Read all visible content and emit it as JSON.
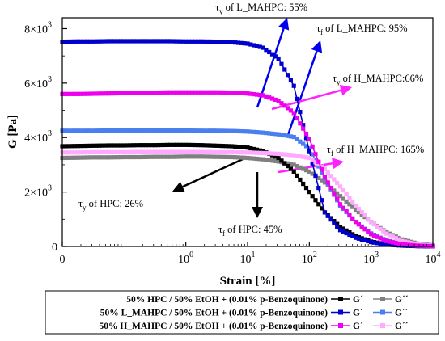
{
  "chart_data": {
    "type": "scatter",
    "xlabel": "Strain [%]",
    "ylabel": "G [Pa]",
    "x_scale": "log",
    "xlim": [
      0.01,
      10000
    ],
    "ylim": [
      0,
      8400
    ],
    "x_ticks": [
      {
        "value": 0.01,
        "label": "0"
      },
      {
        "value": 1,
        "label": "10"
      },
      {
        "value": 10,
        "label": "10"
      },
      {
        "value": 100,
        "label": "10"
      },
      {
        "value": 1000,
        "label": "10"
      },
      {
        "value": 10000,
        "label": "10"
      }
    ],
    "x_tick_exponents": [
      "",
      "0",
      "1",
      "2",
      "3",
      "4"
    ],
    "y_ticks": [
      {
        "value": 0,
        "label": "0",
        "exp": ""
      },
      {
        "value": 2000,
        "label": "2×10",
        "exp": "3"
      },
      {
        "value": 4000,
        "label": "4×10",
        "exp": "3"
      },
      {
        "value": 6000,
        "label": "6×10",
        "exp": "3"
      },
      {
        "value": 8000,
        "label": "8×10",
        "exp": "3"
      }
    ],
    "x": [
      0.01,
      0.0178,
      0.0316,
      0.0562,
      0.1,
      0.178,
      0.316,
      0.562,
      1,
      1.78,
      3.16,
      5.62,
      10,
      17.8,
      31.6,
      56.2,
      100,
      178,
      316,
      562,
      1000,
      1780,
      3160,
      5620,
      10000
    ],
    "series": [
      {
        "name": "50% HPC / 50% EtOH + (0.01% p-Benzoquinone) G´",
        "color": "#000000",
        "values": [
          3680,
          3690,
          3700,
          3710,
          3710,
          3720,
          3720,
          3730,
          3730,
          3720,
          3700,
          3680,
          3630,
          3500,
          3250,
          2750,
          2000,
          1250,
          720,
          380,
          180,
          80,
          35,
          15,
          5
        ]
      },
      {
        "name": "50% HPC / 50% EtOH + (0.01% p-Benzoquinone) G´´",
        "color": "#808080",
        "values": [
          3250,
          3260,
          3270,
          3270,
          3280,
          3280,
          3290,
          3290,
          3300,
          3300,
          3290,
          3280,
          3250,
          3200,
          3120,
          3000,
          2750,
          2350,
          1850,
          1350,
          900,
          520,
          260,
          110,
          40
        ]
      },
      {
        "name": "50% L_MAHPC / 50% EtOH + (0.01% p-Benzoquinone) G´",
        "color": "#0000cc",
        "values": [
          7520,
          7530,
          7530,
          7540,
          7540,
          7540,
          7540,
          7540,
          7530,
          7530,
          7520,
          7500,
          7450,
          7300,
          6900,
          5900,
          3500,
          1250,
          600,
          320,
          160,
          70,
          30,
          12,
          4
        ]
      },
      {
        "name": "50% L_MAHPC / 50% EtOH + (0.01% p-Benzoquinone) G´´",
        "color": "#4a7ff0",
        "values": [
          4250,
          4250,
          4250,
          4260,
          4260,
          4260,
          4260,
          4260,
          4260,
          4250,
          4250,
          4240,
          4220,
          4180,
          4120,
          4020,
          3600,
          2500,
          1500,
          900,
          480,
          220,
          90,
          35,
          12
        ]
      },
      {
        "name": "50% H_MAHPC / 50% EtOH + (0.01% p-Benzoquinone) G´",
        "color": "#ee00ee",
        "values": [
          5600,
          5600,
          5610,
          5620,
          5630,
          5640,
          5650,
          5660,
          5660,
          5660,
          5660,
          5650,
          5620,
          5550,
          5350,
          4900,
          3950,
          2550,
          1550,
          900,
          450,
          200,
          80,
          30,
          10
        ]
      },
      {
        "name": "50% H_MAHPC / 50% EtOH + (0.01% p-Benzoquinone) G´´",
        "color": "#ffaaff",
        "values": [
          3450,
          3450,
          3460,
          3460,
          3460,
          3470,
          3470,
          3470,
          3470,
          3470,
          3460,
          3460,
          3450,
          3430,
          3400,
          3350,
          3250,
          2850,
          2200,
          1500,
          900,
          470,
          200,
          80,
          25
        ]
      }
    ],
    "annotations": [
      {
        "sub": "y",
        "text": " of L_MAHPC: 55%"
      },
      {
        "sub": "f",
        "text": " of L_MAHPC: 95%"
      },
      {
        "sub": "y",
        "text": " of H_MAHPC:66%"
      },
      {
        "sub": "f",
        "text": " of H_MAHPC: 165%"
      },
      {
        "sub": "y",
        "text": " of HPC: 26%"
      },
      {
        "sub": "f",
        "text": " of HPC: 45%"
      }
    ],
    "annotation_symbol": "τ",
    "legend": {
      "placement": "bottom",
      "rows": [
        {
          "label": "50% HPC / 50% EtOH + (0.01% p-Benzoquinone)",
          "g1": "G´",
          "g2": "G´´"
        },
        {
          "label": "50% L_MAHPC / 50% EtOH + (0.01% p-Benzoquinone)",
          "g1": "G´",
          "g2": "G´´"
        },
        {
          "label": "50% H_MAHPC / 50% EtOH + (0.01% p-Benzoquinone)",
          "g1": "G´",
          "g2": "G´´"
        }
      ]
    },
    "grid": false
  }
}
